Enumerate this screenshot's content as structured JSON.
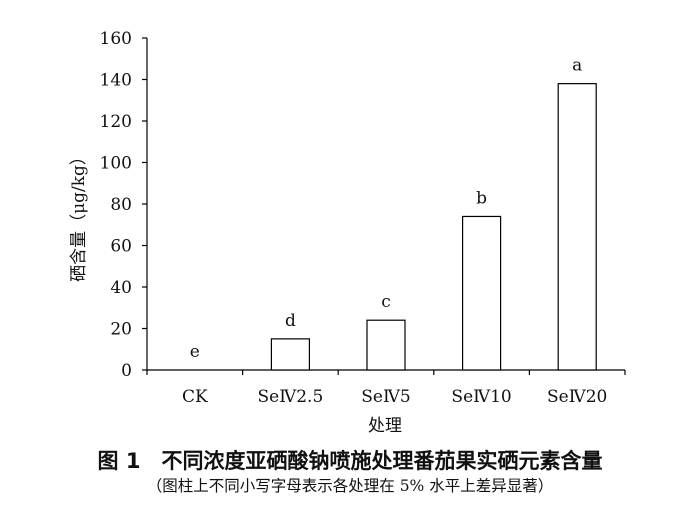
{
  "caption": {
    "title": "图 1　不同浓度亚硒酸钠喷施处理番茄果实硒元素含量",
    "note": "（图柱上不同小写字母表示各处理在 5% 水平上差异显著）"
  },
  "chart_data": {
    "type": "bar",
    "categories": [
      "CK",
      "SeⅣ2.5",
      "SeⅣ5",
      "SeⅣ10",
      "SeⅣ20"
    ],
    "values": [
      0,
      15,
      24,
      74,
      138
    ],
    "significance_letters": [
      "e",
      "d",
      "c",
      "b",
      "a"
    ],
    "xlabel": "处理",
    "ylabel": "硒含量（μg/kg）",
    "ylim": [
      0,
      160
    ],
    "yticks": [
      0,
      20,
      40,
      60,
      80,
      100,
      120,
      140,
      160
    ],
    "bar_fill": "#ffffff",
    "bar_stroke": "#000000",
    "grid": false,
    "legend": "none"
  }
}
